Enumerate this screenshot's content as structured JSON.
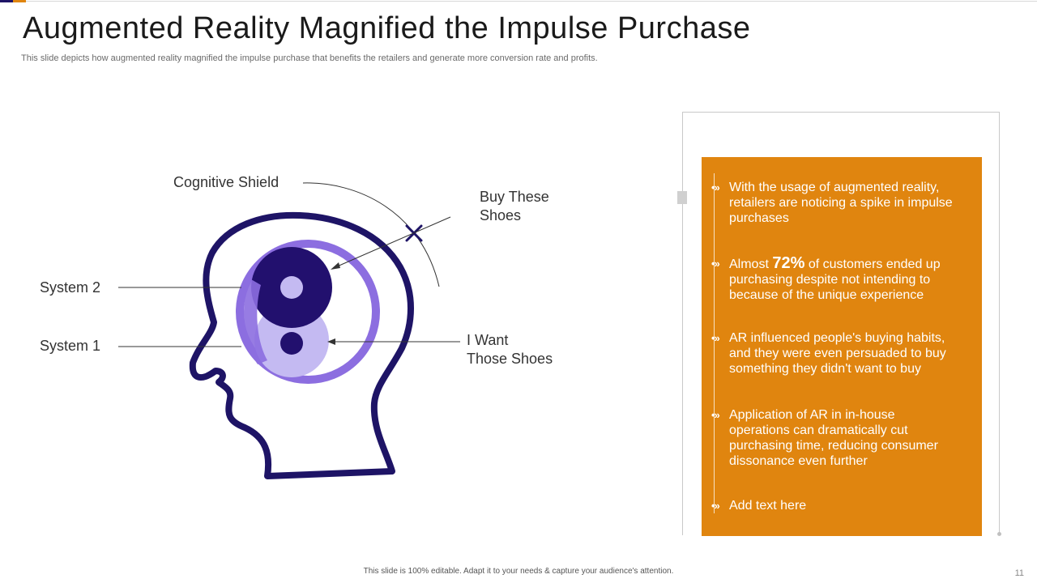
{
  "slide": {
    "title": "Augmented Reality Magnified the Impulse Purchase",
    "subtitle": "This slide depicts how augmented reality magnified the impulse purchase that benefits the retailers and generate more conversion rate and profits.",
    "footer": "This slide is 100% editable.  Adapt it to your needs & capture your audience's attention.",
    "page_number": "11"
  },
  "diagram": {
    "labels": {
      "cognitive_shield": "Cognitive Shield",
      "buy_line1": "Buy These",
      "buy_line2": "Shoes",
      "system2": "System 2",
      "system1": "System 1",
      "want_line1": "I Want",
      "want_line2": "Those Shoes"
    },
    "colors": {
      "head_outline": "#1e1466",
      "system2_circle": "#22106e",
      "system1_circle": "#c4baf2",
      "outer_ring": "#8c6ee0",
      "accent_orange": "#e0850f"
    }
  },
  "panel": {
    "bullet_marker": "•»",
    "bullets": [
      {
        "text": "With the usage of augmented reality, retailers are noticing a spike in impulse purchases"
      },
      {
        "pre": "Almost ",
        "highlight": "72%",
        "post": "  of customers ended up purchasing despite not intending to because of the unique experience"
      },
      {
        "text": "AR influenced people's buying habits, and they were even persuaded to buy something they didn't want to buy"
      },
      {
        "text": "Application of AR in in-house operations can dramatically cut purchasing time, reducing consumer dissonance even further"
      },
      {
        "text": "Add text here"
      }
    ]
  }
}
